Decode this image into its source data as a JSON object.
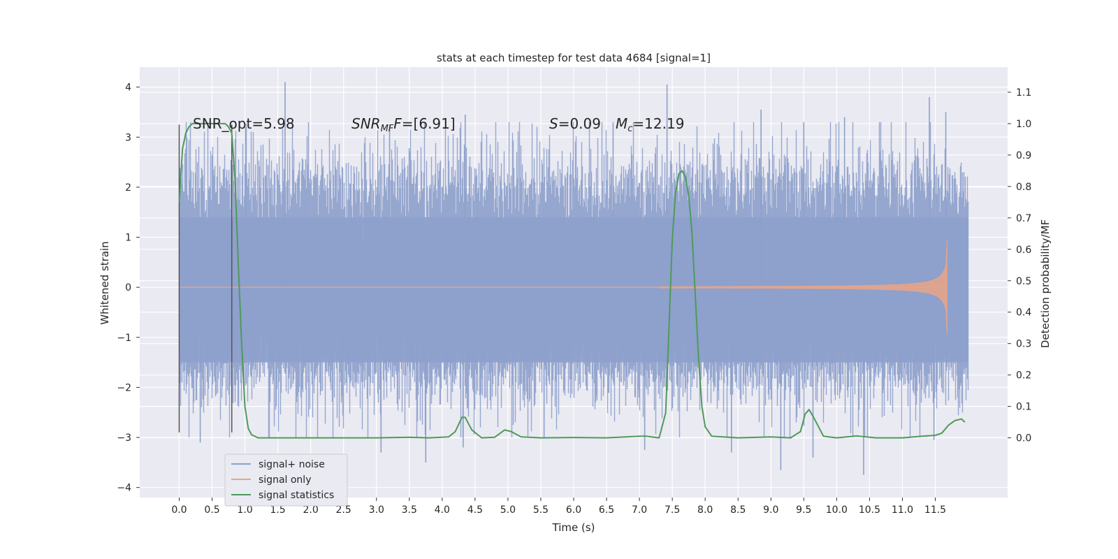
{
  "chart_data": {
    "type": "line",
    "title": "stats at each timestep for test data 4684 [signal=1]",
    "xlabel": "Time (s)",
    "ylabel_left": "Whitened strain",
    "ylabel_right": "Detection probability/MF",
    "xlim": [
      -0.6,
      12.6
    ],
    "ylim_left": [
      -4.2,
      4.4
    ],
    "ylim_right": [
      -0.19,
      1.18
    ],
    "x_ticks": [
      0.0,
      0.5,
      1.0,
      1.5,
      2.0,
      2.5,
      3.0,
      3.5,
      4.0,
      4.5,
      5.0,
      5.5,
      6.0,
      6.5,
      7.0,
      7.5,
      8.0,
      8.5,
      9.0,
      9.5,
      10.0,
      10.5,
      11.0,
      11.5
    ],
    "x_tick_labels": [
      "0.0",
      "0.5",
      "1.0",
      "1.5",
      "2.0",
      "2.5",
      "3.0",
      "3.5",
      "4.0",
      "4.5",
      "5.0",
      "5.5",
      "6.0",
      "6.5",
      "7.0",
      "7.5",
      "8.0",
      "8.5",
      "9.0",
      "9.5",
      "10.0",
      "10.5",
      "11.0",
      "11.5"
    ],
    "y_left_ticks": [
      -4,
      -3,
      -2,
      -1,
      0,
      1,
      2,
      3,
      4
    ],
    "y_left_tick_labels": [
      "−4",
      "−3",
      "−2",
      "−1",
      "0",
      "1",
      "2",
      "3",
      "4"
    ],
    "y_right_ticks": [
      0.0,
      0.1,
      0.2,
      0.3,
      0.4,
      0.5,
      0.6,
      0.7,
      0.8,
      0.9,
      1.0,
      1.1
    ],
    "y_right_tick_labels": [
      "0.0",
      "0.1",
      "0.2",
      "0.3",
      "0.4",
      "0.5",
      "0.6",
      "0.7",
      "0.8",
      "0.9",
      "1.0",
      "1.1"
    ],
    "grid": true,
    "legend_position": "lower-left",
    "annotations": {
      "snr_opt": "SNR_opt=5.98",
      "snr_mf_var": "SNR",
      "snr_mf_sub": "MF",
      "snr_mf_val": "=[6.91]",
      "s_var": "S",
      "s_val": "=0.09",
      "mc_var": "M",
      "mc_sub": "c",
      "mc_val": "=12.19"
    },
    "markers": {
      "vertical_lines_x": [
        0.0,
        0.8
      ],
      "vertical_lines_y": [
        -2.9,
        3.25
      ]
    },
    "series": [
      {
        "name": "signal+ noise",
        "axis": "left",
        "color": "#8da0cb",
        "style": "dense-noise",
        "x_range": [
          0.0,
          12.0
        ],
        "band_typical": [
          -1.7,
          2.0
        ],
        "spikes": [
          {
            "x": 1.61,
            "y": 4.1
          },
          {
            "x": 7.42,
            "y": 4.05
          },
          {
            "x": 11.41,
            "y": 3.8
          },
          {
            "x": 8.85,
            "y": 3.55
          },
          {
            "x": 4.35,
            "y": 3.45
          },
          {
            "x": 11.66,
            "y": 3.5
          },
          {
            "x": 1.01,
            "y": 3.2
          },
          {
            "x": 3.2,
            "y": 3.25
          },
          {
            "x": 6.6,
            "y": 3.3
          },
          {
            "x": 9.5,
            "y": 3.3
          },
          {
            "x": 10.12,
            "y": 3.4
          },
          {
            "x": 3.75,
            "y": -3.5
          },
          {
            "x": 10.41,
            "y": -3.75
          },
          {
            "x": 9.15,
            "y": -3.65
          },
          {
            "x": 3.07,
            "y": -3.3
          },
          {
            "x": 7.08,
            "y": -3.25
          },
          {
            "x": 4.32,
            "y": -3.2
          },
          {
            "x": 8.4,
            "y": -3.3
          },
          {
            "x": 0.32,
            "y": -3.1
          },
          {
            "x": 9.64,
            "y": -3.4
          },
          {
            "x": 5.55,
            "y": -3.0
          },
          {
            "x": 11.48,
            "y": -3.05
          }
        ]
      },
      {
        "name": "signal only",
        "axis": "left",
        "color": "#e5a58a",
        "style": "chirp",
        "x_range": [
          0.0,
          11.68
        ],
        "chirp_start": 7.3,
        "peak_amplitude": 0.95
      },
      {
        "name": "signal statistics",
        "axis": "right",
        "color": "#4e9a5a",
        "x": [
          0.0,
          0.05,
          0.1,
          0.15,
          0.2,
          0.3,
          0.4,
          0.5,
          0.6,
          0.7,
          0.75,
          0.8,
          0.85,
          0.9,
          0.95,
          1.0,
          1.05,
          1.1,
          1.2,
          1.5,
          2.0,
          3.0,
          3.5,
          3.8,
          4.1,
          4.2,
          4.3,
          4.35,
          4.45,
          4.6,
          4.8,
          4.95,
          5.05,
          5.2,
          5.5,
          6.0,
          6.5,
          7.0,
          7.1,
          7.3,
          7.4,
          7.45,
          7.5,
          7.55,
          7.6,
          7.65,
          7.7,
          7.75,
          7.8,
          7.85,
          7.9,
          7.95,
          8.0,
          8.1,
          8.5,
          9.0,
          9.3,
          9.45,
          9.52,
          9.58,
          9.65,
          9.8,
          10.0,
          10.3,
          10.6,
          11.0,
          11.3,
          11.5,
          11.6,
          11.7,
          11.8,
          11.9,
          11.95
        ],
        "y": [
          0.75,
          0.92,
          0.97,
          0.99,
          1.0,
          1.0,
          1.0,
          1.0,
          1.0,
          1.0,
          0.99,
          0.97,
          0.82,
          0.55,
          0.3,
          0.1,
          0.03,
          0.01,
          0.0,
          0.0,
          0.0,
          0.0,
          0.002,
          0.0,
          0.003,
          0.02,
          0.065,
          0.065,
          0.025,
          0.0,
          0.002,
          0.025,
          0.02,
          0.003,
          0.0,
          0.001,
          0.0,
          0.005,
          0.005,
          0.0,
          0.08,
          0.35,
          0.63,
          0.78,
          0.84,
          0.85,
          0.83,
          0.77,
          0.65,
          0.45,
          0.25,
          0.1,
          0.035,
          0.005,
          0.0,
          0.003,
          0.0,
          0.02,
          0.075,
          0.09,
          0.065,
          0.005,
          0.0,
          0.006,
          0.0,
          0.0,
          0.005,
          0.008,
          0.015,
          0.04,
          0.055,
          0.06,
          0.05
        ]
      }
    ]
  }
}
